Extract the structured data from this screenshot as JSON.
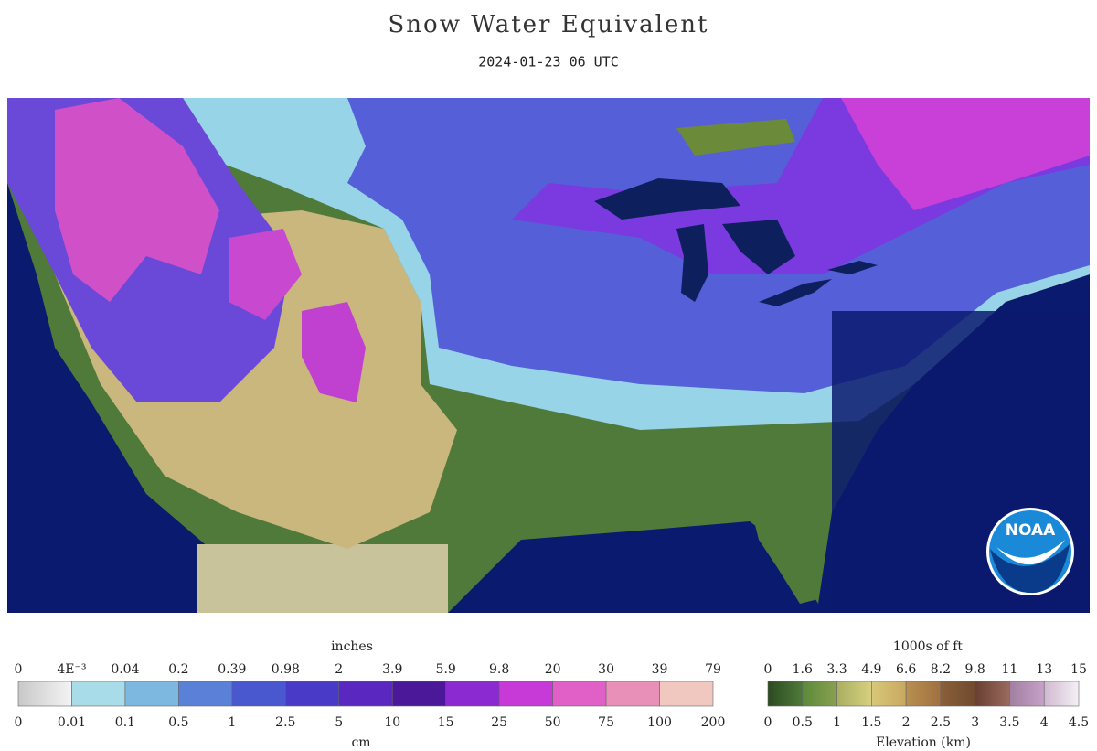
{
  "header": {
    "title": "Snow Water Equivalent",
    "subtitle": "2024-01-23 06 UTC"
  },
  "logo": {
    "text": "NOAA"
  },
  "swe_legend": {
    "top_unit": "inches",
    "top_labels": [
      "0",
      "4E⁻³",
      "0.04",
      "0.2",
      "0.39",
      "0.98",
      "2",
      "3.9",
      "5.9",
      "9.8",
      "20",
      "30",
      "39",
      "79"
    ],
    "bottom_labels": [
      "0",
      "0.01",
      "0.1",
      "0.5",
      "1",
      "2.5",
      "5",
      "10",
      "15",
      "25",
      "50",
      "75",
      "100",
      "200"
    ],
    "bottom_unit": "cm"
  },
  "elevation_legend": {
    "top_unit": "1000s of ft",
    "top_labels": [
      "0",
      "1.6",
      "3.3",
      "4.9",
      "6.6",
      "8.2",
      "9.8",
      "11",
      "13",
      "15"
    ],
    "bottom_labels": [
      "0",
      "0.5",
      "1",
      "1.5",
      "2",
      "2.5",
      "3",
      "3.5",
      "4",
      "4.5"
    ],
    "bottom_unit": "Elevation (km)"
  }
}
